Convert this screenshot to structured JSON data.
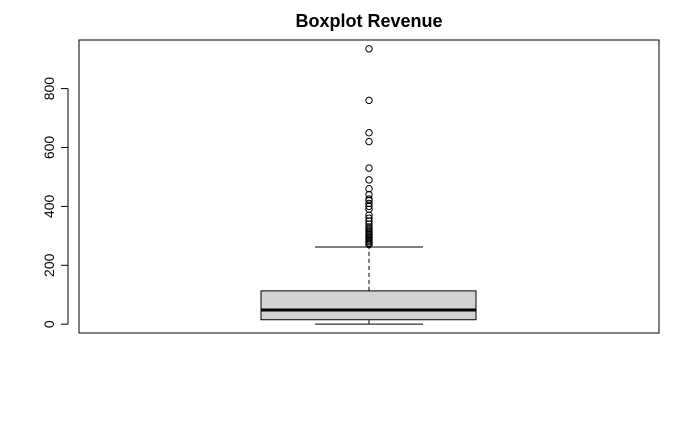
{
  "chart_data": {
    "type": "boxplot",
    "title": "Boxplot Revenue",
    "xlabel": "",
    "ylabel": "",
    "ylim": [
      -30,
      965
    ],
    "y_ticks": [
      0,
      200,
      400,
      600,
      800
    ],
    "y_tick_labels": [
      "0",
      "200",
      "400",
      "600",
      "800"
    ],
    "box": {
      "whisker_low": 0,
      "q1": 15,
      "median": 48,
      "q3": 113,
      "whisker_high": 262
    },
    "outliers": [
      270,
      275,
      280,
      285,
      290,
      295,
      300,
      305,
      310,
      315,
      320,
      325,
      330,
      340,
      350,
      360,
      370,
      390,
      400,
      410,
      420,
      425,
      440,
      460,
      490,
      530,
      620,
      650,
      760,
      935
    ],
    "colors": {
      "box_fill": "#d3d3d3",
      "line": "#000000",
      "background": "#ffffff"
    }
  }
}
